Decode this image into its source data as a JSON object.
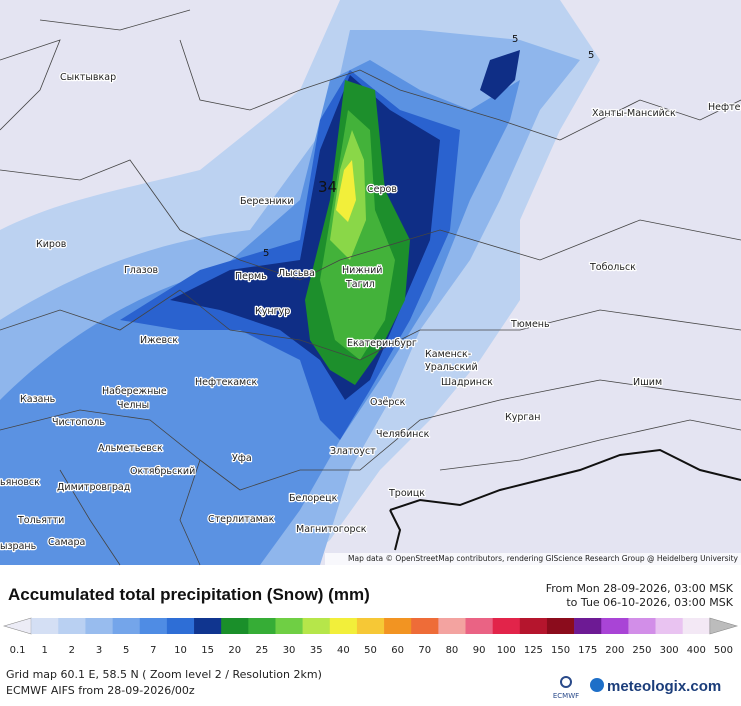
{
  "map": {
    "cities": [
      "Сыктывкар",
      "Березники",
      "Серов",
      "Киров",
      "Глазов",
      "Пермь",
      "Лысьва",
      "Нижний",
      "Тагил",
      "Кунгур",
      "Тобольск",
      "Ханты-Мансийск",
      "Нефте",
      "Ижевск",
      "Тюмень",
      "Екатеринбург",
      "Каменск-",
      "Уральский",
      "Шадринск",
      "Набережные",
      "Челны",
      "Нефтекамск",
      "Ишим",
      "Казань",
      "Озёрск",
      "Чистополь",
      "Курган",
      "Челябинск",
      "Альметьевск",
      "Златоуст",
      "Уфа",
      "Октябрьский",
      "ьяновск",
      "Димитровград",
      "Троицк",
      "Белорецк",
      "Стерлитамак",
      "Тольятти",
      "Магнитогорск",
      "Самара",
      "ызрань"
    ],
    "max_label": "34",
    "contour_labels": [
      "5",
      "5",
      "5"
    ],
    "attribution": "Map data © OpenStreetMap contributors, rendering GIScience Research Group @ Heidelberg University"
  },
  "legend": {
    "title": "Accumulated total precipitation (Snow) (mm)",
    "from": "From Mon 28-09-2026, 03:00 MSK",
    "to": "to Tue 06-10-2026, 03:00 MSK",
    "values": [
      0.1,
      1,
      2,
      3,
      5,
      7,
      10,
      15,
      20,
      25,
      30,
      35,
      40,
      50,
      60,
      70,
      80,
      90,
      100,
      125,
      150,
      175,
      200,
      250,
      300,
      400,
      500
    ],
    "colors": [
      "#ececf6",
      "#d4dff4",
      "#b9d0f2",
      "#98bcee",
      "#74a5ea",
      "#4f8ce4",
      "#2e6ed6",
      "#10358f",
      "#1a8f2a",
      "#36ad36",
      "#6fcf44",
      "#b6e64a",
      "#f2ef3a",
      "#f6c836",
      "#f29422",
      "#ee6c38",
      "#f3a3a0",
      "#ea6384",
      "#e2244a",
      "#b5152d",
      "#8b0c1c",
      "#6d1a94",
      "#a944d6",
      "#d28ee8",
      "#e9c3f1",
      "#f3e8f5",
      "#bcbcbc"
    ]
  },
  "footer": {
    "grid": "Grid map 60.1 E, 58.5 N ( Zoom level 2 / Resolution 2km)",
    "model": "ECMWF AIFS from 28-09-2026/00z",
    "ecmwf": "ECMWF",
    "brand": "meteologix.com"
  }
}
